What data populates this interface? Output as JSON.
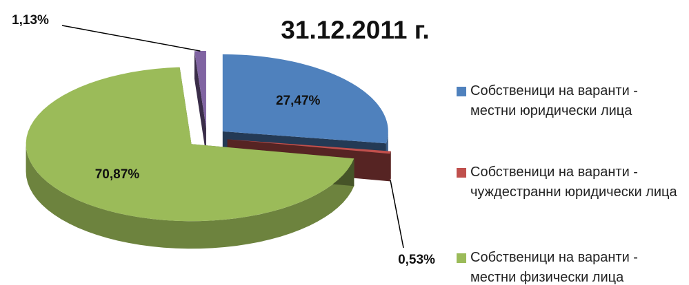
{
  "chart_data": {
    "type": "pie",
    "title": "31.12.2011 г.",
    "categories": [
      "Собственици на варанти - местни юридически лица",
      "Собственици на варанти - чуждестранни юридически лица",
      "Собственици на варанти - местни физически лица",
      null
    ],
    "values": [
      27.47,
      0.53,
      70.87,
      1.13
    ],
    "value_labels": [
      "27,47%",
      "0,53%",
      "70,87%",
      "1,13%"
    ],
    "colors": [
      "#4f81bd",
      "#c0504d",
      "#9bbb59",
      "#8064a2"
    ],
    "legend": "right"
  }
}
